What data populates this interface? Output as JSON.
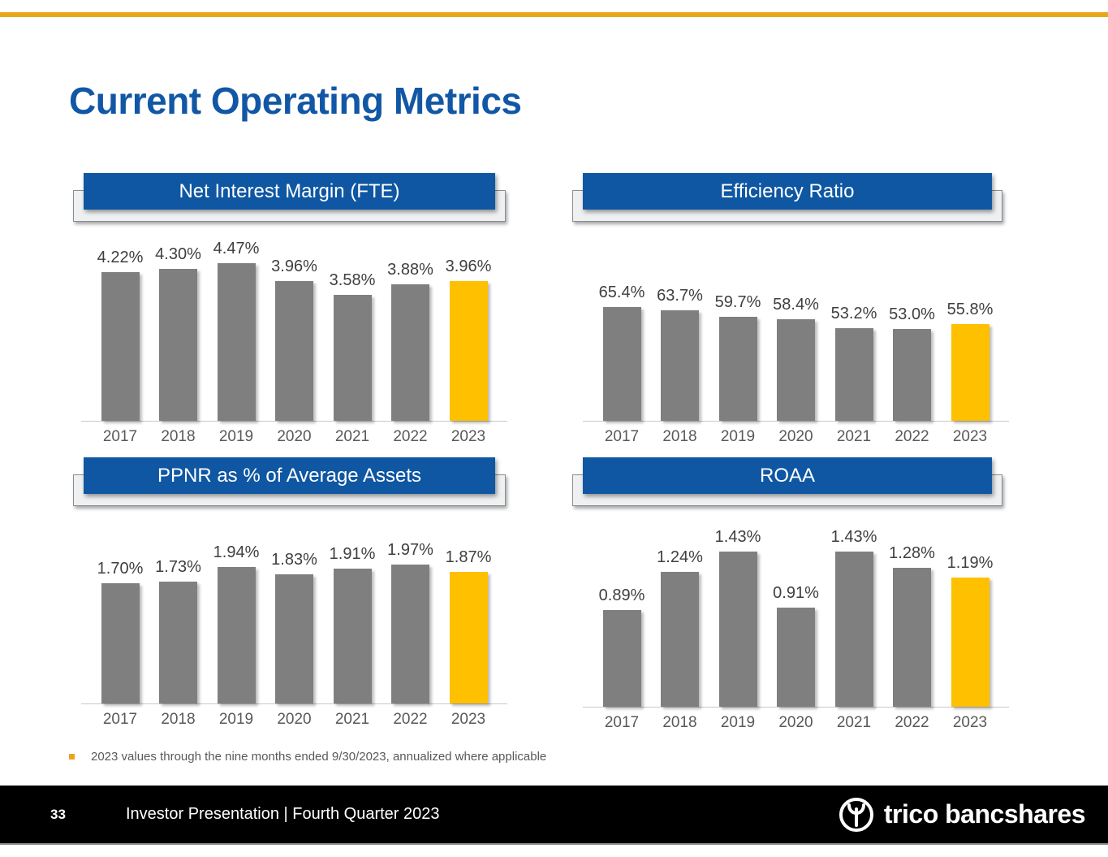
{
  "page": {
    "title": "Current Operating Metrics",
    "footnote": "2023 values through the nine months ended 9/30/2023, annualized where applicable",
    "footer": {
      "page_number": "33",
      "text": "Investor Presentation | Fourth Quarter 2023",
      "logo_text": "trico bancshares"
    },
    "colors": {
      "accent_gold": "#E8A71B",
      "bar_gray": "#7F7F7F",
      "bar_gold": "#FFC000",
      "header_blue": "#0F57A3",
      "title_blue": "#1257A5",
      "footer_black": "#000000"
    }
  },
  "chart_data": [
    {
      "type": "bar",
      "title": "Net Interest Margin (FTE)",
      "categories": [
        "2017",
        "2018",
        "2019",
        "2020",
        "2021",
        "2022",
        "2023"
      ],
      "values": [
        4.22,
        4.3,
        4.47,
        3.96,
        3.58,
        3.88,
        3.96
      ],
      "labels": [
        "4.22%",
        "4.30%",
        "4.47%",
        "3.96%",
        "3.58%",
        "3.88%",
        "3.96%"
      ],
      "highlight_index": 6,
      "ylim": [
        0,
        4.47
      ],
      "legend": "none",
      "grid": false
    },
    {
      "type": "bar",
      "title": "Efficiency Ratio",
      "categories": [
        "2017",
        "2018",
        "2019",
        "2020",
        "2021",
        "2022",
        "2023"
      ],
      "values": [
        65.4,
        63.7,
        59.7,
        58.4,
        53.2,
        53.0,
        55.8
      ],
      "labels": [
        "65.4%",
        "63.7%",
        "59.7%",
        "58.4%",
        "53.2%",
        "53.0%",
        "55.8%"
      ],
      "highlight_index": 6,
      "ylim": [
        0,
        65.4
      ],
      "legend": "none",
      "grid": false
    },
    {
      "type": "bar",
      "title": "PPNR as % of Average Assets",
      "categories": [
        "2017",
        "2018",
        "2019",
        "2020",
        "2021",
        "2022",
        "2023"
      ],
      "values": [
        1.7,
        1.73,
        1.94,
        1.83,
        1.91,
        1.97,
        1.87
      ],
      "labels": [
        "1.70%",
        "1.73%",
        "1.94%",
        "1.83%",
        "1.91%",
        "1.97%",
        "1.87%"
      ],
      "highlight_index": 6,
      "ylim": [
        0,
        1.97
      ],
      "legend": "none",
      "grid": false
    },
    {
      "type": "bar",
      "title": "ROAA",
      "categories": [
        "2017",
        "2018",
        "2019",
        "2020",
        "2021",
        "2022",
        "2023"
      ],
      "values": [
        0.89,
        1.24,
        1.43,
        0.91,
        1.43,
        1.28,
        1.19
      ],
      "labels": [
        "0.89%",
        "1.24%",
        "1.43%",
        "0.91%",
        "1.43%",
        "1.28%",
        "1.19%"
      ],
      "highlight_index": 6,
      "ylim": [
        0,
        1.43
      ],
      "legend": "none",
      "grid": false
    }
  ]
}
